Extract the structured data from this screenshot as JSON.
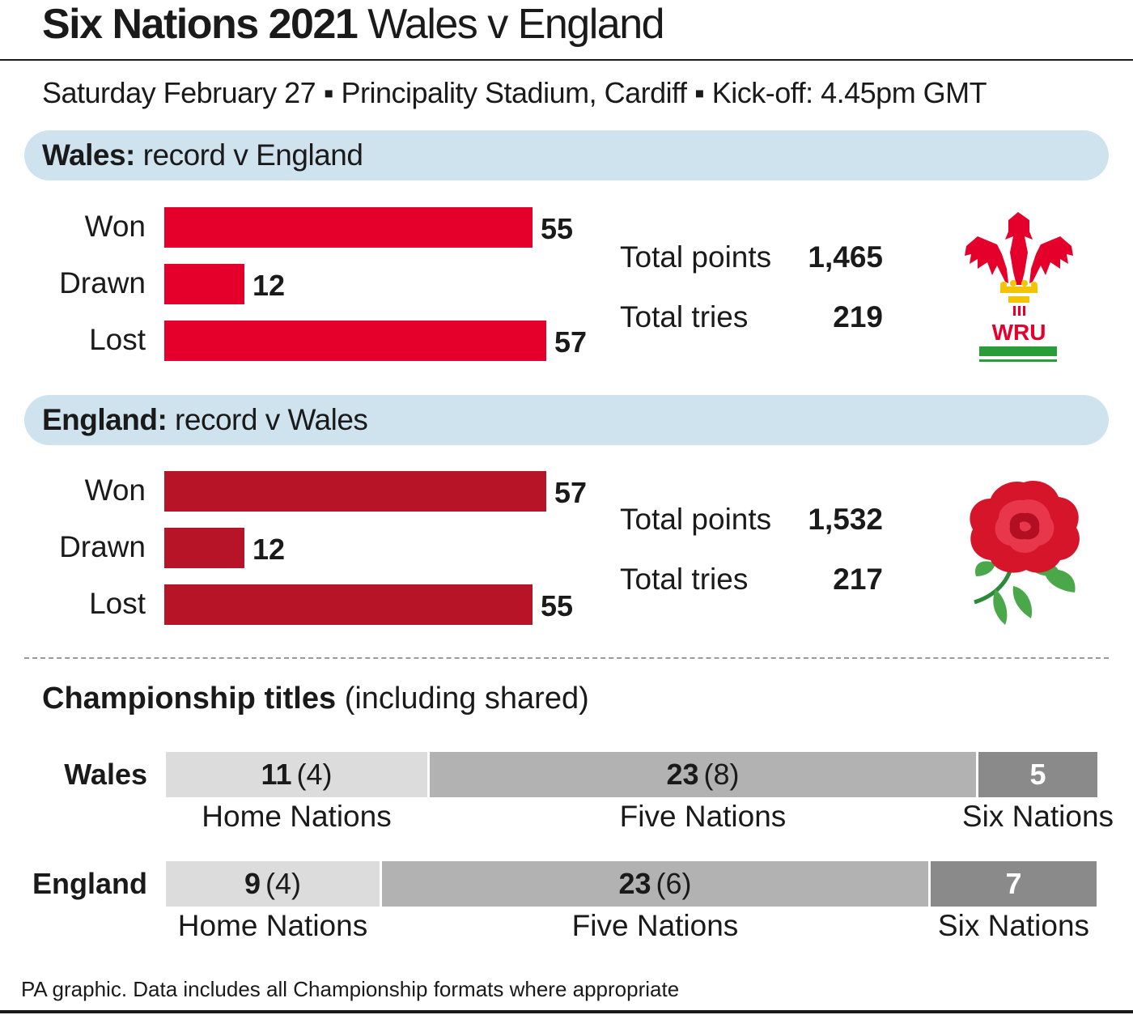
{
  "header": {
    "title_strong": "Six Nations 2021",
    "title_light": "Wales v England",
    "subtitle": "Saturday February 27 ▪ Principality Stadium, Cardiff ▪ Kick-off: 4.45pm GMT"
  },
  "wales_panel": {
    "team": "Wales:",
    "caption": "record v England",
    "stats": [
      {
        "label": "Total points",
        "value": "1,465"
      },
      {
        "label": "Total tries",
        "value": "219"
      }
    ],
    "logo_text": "WRU"
  },
  "england_panel": {
    "team": "England:",
    "caption": "record v Wales",
    "stats": [
      {
        "label": "Total points",
        "value": "1,532"
      },
      {
        "label": "Total tries",
        "value": "217"
      }
    ]
  },
  "titles_section": {
    "heading": "Championship titles",
    "heading_note": "(including shared)"
  },
  "colors": {
    "wales_bar": "#e4002b",
    "england_bar": "#b81427",
    "pill": "#cfe3ef",
    "home_nations": "#dcdcdc",
    "five_nations": "#b2b2b2",
    "six_nations": "#8a8a8a"
  },
  "footer": {
    "source": "PA graphic. Data includes all Championship formats where appropriate"
  },
  "chart_data": [
    {
      "type": "bar",
      "orientation": "horizontal",
      "title": "Wales: record v England",
      "categories": [
        "Won",
        "Drawn",
        "Lost"
      ],
      "values": [
        55,
        12,
        57
      ],
      "labels": [
        "55",
        "12",
        "57"
      ],
      "xlim": [
        0,
        57
      ]
    },
    {
      "type": "bar",
      "orientation": "horizontal",
      "title": "England: record v Wales",
      "categories": [
        "Won",
        "Drawn",
        "Lost"
      ],
      "values": [
        57,
        12,
        55
      ],
      "labels": [
        "57",
        "12",
        "55"
      ],
      "xlim": [
        0,
        57
      ]
    },
    {
      "type": "bar",
      "orientation": "horizontal",
      "stacked": true,
      "title": "Championship titles (including shared)",
      "categories": [
        "Wales",
        "England"
      ],
      "series": [
        {
          "name": "Home Nations",
          "values": [
            11,
            9
          ],
          "shared": [
            4,
            4
          ],
          "labels": [
            "11",
            "9"
          ],
          "shared_labels": [
            "(4)",
            "(4)"
          ]
        },
        {
          "name": "Five Nations",
          "values": [
            23,
            23
          ],
          "shared": [
            8,
            6
          ],
          "labels": [
            "23",
            "23"
          ],
          "shared_labels": [
            "(8)",
            "(6)"
          ]
        },
        {
          "name": "Six Nations",
          "values": [
            5,
            7
          ],
          "labels": [
            "5",
            "7"
          ]
        }
      ]
    }
  ]
}
